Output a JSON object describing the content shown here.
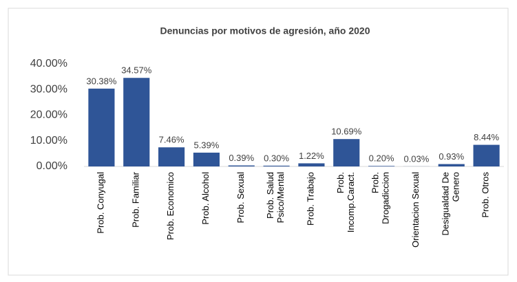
{
  "chart_data": {
    "type": "bar",
    "title": "Denuncias por motivos de agresión, año 2020",
    "categories": [
      "Prob.  Conyugal",
      "Prob.  Familiar",
      "Prob.  Economico",
      "Prob.  Alcohol",
      "Prob.  Sexual",
      "Prob.  Salud\nPsico/Mental",
      "Prob.  Trabajo",
      "Prob.\nIncomp.Caract.",
      "Prob.\nDrogadiccion",
      "Orientacion Sexual",
      "Desigualdad De\nGenero",
      "Prob.  Otros"
    ],
    "values": [
      30.38,
      34.57,
      7.46,
      5.39,
      0.39,
      0.3,
      1.22,
      10.69,
      0.2,
      0.03,
      0.93,
      8.44
    ],
    "value_labels": [
      "30.38%",
      "34.57%",
      "7.46%",
      "5.39%",
      "0.39%",
      "0.30%",
      "1.22%",
      "10.69%",
      "0.20%",
      "0.03%",
      "0.93%",
      "8.44%"
    ],
    "color": "#2f5597",
    "ylim": [
      0,
      40
    ],
    "yticks": [
      {
        "value": 0,
        "label": "0.00%"
      },
      {
        "value": 10,
        "label": "10.00%"
      },
      {
        "value": 20,
        "label": "20.00%"
      },
      {
        "value": 30,
        "label": "30.00%"
      },
      {
        "value": 40,
        "label": "40.00%"
      }
    ],
    "grid": false
  }
}
